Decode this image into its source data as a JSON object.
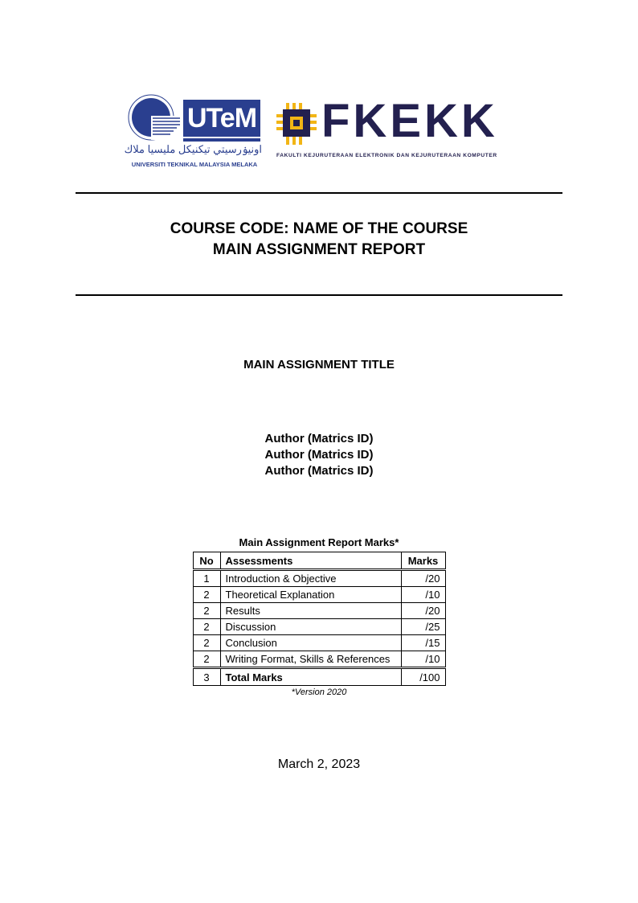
{
  "logos": {
    "utem": {
      "mark": "UTeM",
      "jawi": "اونيۏرسيتي تيكنيكل مليسيا ملاك",
      "caption": "UNIVERSITI TEKNIKAL MALAYSIA MELAKA",
      "ring_text": "UNIVERSITI TEKNIKAL MALAYSIA MELAKA",
      "color": "#2a3f8f"
    },
    "fkekk": {
      "mark": "FKEKK",
      "caption": "FAKULTI KEJURUTERAAN ELEKTRONIK DAN KEJURUTERAAN KOMPUTER",
      "color": "#23204f",
      "accent": "#f2b515"
    }
  },
  "header": {
    "course_line": "COURSE CODE: NAME OF THE COURSE",
    "report_line": "MAIN ASSIGNMENT REPORT"
  },
  "assignment_title": "MAIN ASSIGNMENT TITLE",
  "authors": [
    "Author (Matrics ID)",
    "Author (Matrics ID)",
    "Author (Matrics ID)"
  ],
  "marks_table": {
    "caption": "Main Assignment Report Marks*",
    "columns": [
      "No",
      "Assessments",
      "Marks"
    ],
    "rows": [
      {
        "no": "1",
        "assessment": "Introduction & Objective",
        "marks": "/20"
      },
      {
        "no": "2",
        "assessment": "Theoretical Explanation",
        "marks": "/10"
      },
      {
        "no": "2",
        "assessment": "Results",
        "marks": "/20"
      },
      {
        "no": "2",
        "assessment": "Discussion",
        "marks": "/25"
      },
      {
        "no": "2",
        "assessment": "Conclusion",
        "marks": "/15"
      },
      {
        "no": "2",
        "assessment": "Writing Format, Skills & References",
        "marks": "/10"
      }
    ],
    "total": {
      "no": "3",
      "assessment": "Total Marks",
      "marks": "/100"
    },
    "footnote": "*Version 2020"
  },
  "date": "March 2, 2023"
}
